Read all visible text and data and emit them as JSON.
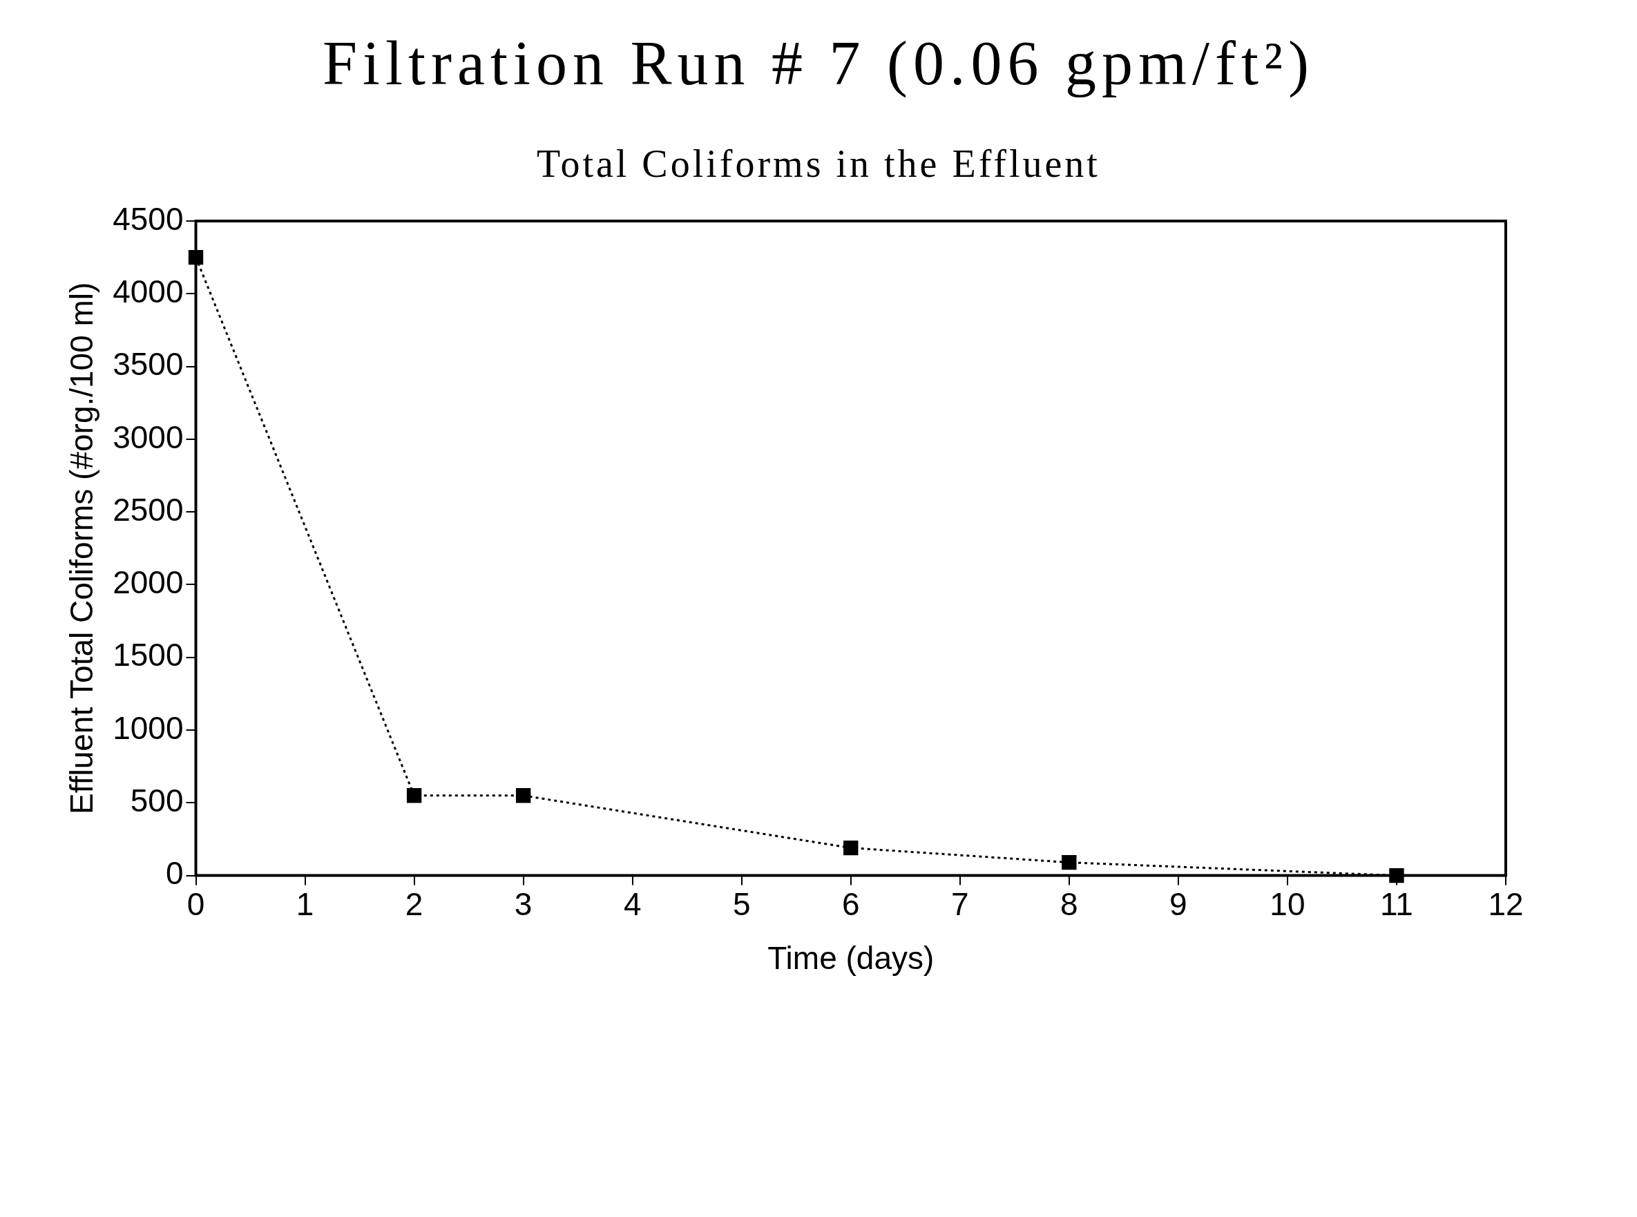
{
  "chart_data": {
    "type": "line",
    "title": "Filtration Run # 7 (0.06 gpm/ft²)",
    "subtitle": "Total Coliforms in the Effluent",
    "xlabel": "Time (days)",
    "ylabel": "Effluent Total Coliforms (#org./100 ml)",
    "x": [
      0,
      2,
      3,
      6,
      8,
      11
    ],
    "series": [
      {
        "color": "#000000",
        "values": [
          4250,
          550,
          550,
          190,
          90,
          0
        ]
      }
    ],
    "xlim": [
      0,
      12
    ],
    "xticks": [
      0,
      1,
      2,
      3,
      4,
      5,
      6,
      7,
      8,
      9,
      10,
      11,
      12
    ],
    "ylim": [
      0,
      4500
    ],
    "yticks": [
      0,
      500,
      1000,
      1500,
      2000,
      2500,
      3000,
      3500,
      4000,
      4500
    ],
    "grid": false,
    "legend": false,
    "marker": "square",
    "line_style": "dotted"
  }
}
